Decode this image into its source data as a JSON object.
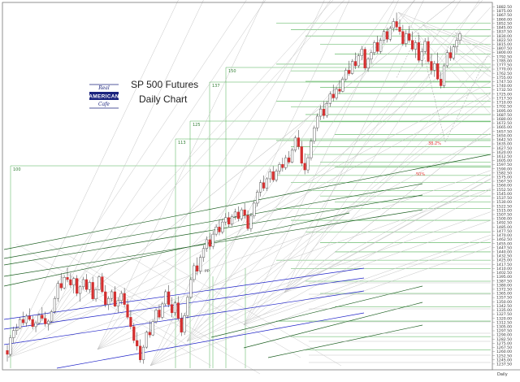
{
  "title": {
    "line1": "SP 500 Futures",
    "line2": "Daily Chart"
  },
  "logo": {
    "top": "Real",
    "main": "AMERICAN",
    "bottom": "Cafe"
  },
  "footer": "Daily",
  "colors": {
    "up_candle": "#ffffff",
    "down_candle": "#d32f2f",
    "green_line": "#4caf50",
    "dark_green_line": "#1b5e20",
    "blue_line": "#1e22c8",
    "gray_line": "#bdbdbd",
    "fib_label": "#e53935"
  },
  "chart_data": {
    "type": "candlestick",
    "ylim": [
      1230.0,
      1887.5
    ],
    "y_tick_step": 7.5,
    "y_tick_start": 1237.5,
    "y_tick_end": 1885.0,
    "box_labels": [
      "100",
      "113",
      "125",
      "137",
      "150"
    ],
    "annotations": [
      {
        "text": "38.2%",
        "price": 1555
      },
      {
        "text": "50%",
        "price": 1520
      },
      {
        "text": "pp",
        "price": 1412
      }
    ],
    "horizontal_levels": [
      1853,
      1841,
      1830,
      1815,
      1797,
      1779,
      1767,
      1748,
      1737,
      1726,
      1712,
      1702,
      1688,
      1675,
      1652,
      1641,
      1630,
      1616,
      1602,
      1593,
      1578,
      1565,
      1551,
      1541,
      1530,
      1518,
      1497,
      1476,
      1457,
      1440,
      1425,
      1410,
      1387,
      1365,
      1341,
      1315,
      1287,
      1263
    ],
    "candles": [
      {
        "o": 1262,
        "h": 1272,
        "l": 1242,
        "c": 1255
      },
      {
        "o": 1255,
        "h": 1290,
        "l": 1252,
        "c": 1285
      },
      {
        "o": 1285,
        "h": 1305,
        "l": 1275,
        "c": 1298
      },
      {
        "o": 1298,
        "h": 1310,
        "l": 1290,
        "c": 1302
      },
      {
        "o": 1302,
        "h": 1322,
        "l": 1300,
        "c": 1318
      },
      {
        "o": 1318,
        "h": 1332,
        "l": 1308,
        "c": 1312
      },
      {
        "o": 1312,
        "h": 1328,
        "l": 1305,
        "c": 1324
      },
      {
        "o": 1324,
        "h": 1338,
        "l": 1315,
        "c": 1318
      },
      {
        "o": 1318,
        "h": 1325,
        "l": 1300,
        "c": 1305
      },
      {
        "o": 1305,
        "h": 1316,
        "l": 1295,
        "c": 1312
      },
      {
        "o": 1312,
        "h": 1330,
        "l": 1308,
        "c": 1326
      },
      {
        "o": 1326,
        "h": 1340,
        "l": 1316,
        "c": 1320
      },
      {
        "o": 1320,
        "h": 1332,
        "l": 1305,
        "c": 1310
      },
      {
        "o": 1310,
        "h": 1318,
        "l": 1298,
        "c": 1315
      },
      {
        "o": 1315,
        "h": 1335,
        "l": 1312,
        "c": 1332
      },
      {
        "o": 1332,
        "h": 1360,
        "l": 1328,
        "c": 1356
      },
      {
        "o": 1356,
        "h": 1388,
        "l": 1350,
        "c": 1383
      },
      {
        "o": 1383,
        "h": 1402,
        "l": 1370,
        "c": 1375
      },
      {
        "o": 1375,
        "h": 1398,
        "l": 1372,
        "c": 1394
      },
      {
        "o": 1394,
        "h": 1412,
        "l": 1385,
        "c": 1390
      },
      {
        "o": 1390,
        "h": 1402,
        "l": 1375,
        "c": 1380
      },
      {
        "o": 1380,
        "h": 1395,
        "l": 1365,
        "c": 1392
      },
      {
        "o": 1392,
        "h": 1398,
        "l": 1360,
        "c": 1365
      },
      {
        "o": 1365,
        "h": 1380,
        "l": 1350,
        "c": 1377
      },
      {
        "o": 1377,
        "h": 1395,
        "l": 1372,
        "c": 1390
      },
      {
        "o": 1390,
        "h": 1400,
        "l": 1368,
        "c": 1372
      },
      {
        "o": 1372,
        "h": 1388,
        "l": 1366,
        "c": 1385
      },
      {
        "o": 1385,
        "h": 1395,
        "l": 1352,
        "c": 1355
      },
      {
        "o": 1355,
        "h": 1375,
        "l": 1350,
        "c": 1372
      },
      {
        "o": 1372,
        "h": 1398,
        "l": 1370,
        "c": 1395
      },
      {
        "o": 1395,
        "h": 1402,
        "l": 1365,
        "c": 1368
      },
      {
        "o": 1368,
        "h": 1380,
        "l": 1340,
        "c": 1345
      },
      {
        "o": 1345,
        "h": 1360,
        "l": 1335,
        "c": 1356
      },
      {
        "o": 1356,
        "h": 1372,
        "l": 1350,
        "c": 1368
      },
      {
        "o": 1368,
        "h": 1378,
        "l": 1340,
        "c": 1342
      },
      {
        "o": 1342,
        "h": 1358,
        "l": 1330,
        "c": 1352
      },
      {
        "o": 1352,
        "h": 1370,
        "l": 1345,
        "c": 1365
      },
      {
        "o": 1365,
        "h": 1375,
        "l": 1340,
        "c": 1345
      },
      {
        "o": 1345,
        "h": 1355,
        "l": 1318,
        "c": 1322
      },
      {
        "o": 1322,
        "h": 1335,
        "l": 1300,
        "c": 1305
      },
      {
        "o": 1305,
        "h": 1312,
        "l": 1275,
        "c": 1280
      },
      {
        "o": 1280,
        "h": 1295,
        "l": 1262,
        "c": 1270
      },
      {
        "o": 1270,
        "h": 1282,
        "l": 1240,
        "c": 1245
      },
      {
        "o": 1245,
        "h": 1272,
        "l": 1238,
        "c": 1268
      },
      {
        "o": 1268,
        "h": 1298,
        "l": 1265,
        "c": 1295
      },
      {
        "o": 1295,
        "h": 1315,
        "l": 1285,
        "c": 1290
      },
      {
        "o": 1290,
        "h": 1318,
        "l": 1288,
        "c": 1314
      },
      {
        "o": 1314,
        "h": 1338,
        "l": 1310,
        "c": 1335
      },
      {
        "o": 1335,
        "h": 1345,
        "l": 1318,
        "c": 1322
      },
      {
        "o": 1322,
        "h": 1350,
        "l": 1318,
        "c": 1346
      },
      {
        "o": 1346,
        "h": 1372,
        "l": 1342,
        "c": 1368
      },
      {
        "o": 1368,
        "h": 1380,
        "l": 1340,
        "c": 1345
      },
      {
        "o": 1345,
        "h": 1358,
        "l": 1322,
        "c": 1330
      },
      {
        "o": 1330,
        "h": 1352,
        "l": 1325,
        "c": 1348
      },
      {
        "o": 1348,
        "h": 1360,
        "l": 1316,
        "c": 1320
      },
      {
        "o": 1320,
        "h": 1330,
        "l": 1288,
        "c": 1295
      },
      {
        "o": 1295,
        "h": 1330,
        "l": 1290,
        "c": 1325
      },
      {
        "o": 1325,
        "h": 1362,
        "l": 1320,
        "c": 1358
      },
      {
        "o": 1358,
        "h": 1395,
        "l": 1355,
        "c": 1390
      },
      {
        "o": 1390,
        "h": 1420,
        "l": 1385,
        "c": 1415
      },
      {
        "o": 1415,
        "h": 1430,
        "l": 1398,
        "c": 1405
      },
      {
        "o": 1405,
        "h": 1435,
        "l": 1400,
        "c": 1430
      },
      {
        "o": 1430,
        "h": 1452,
        "l": 1422,
        "c": 1446
      },
      {
        "o": 1446,
        "h": 1468,
        "l": 1440,
        "c": 1462
      },
      {
        "o": 1462,
        "h": 1474,
        "l": 1444,
        "c": 1450
      },
      {
        "o": 1450,
        "h": 1478,
        "l": 1445,
        "c": 1472
      },
      {
        "o": 1472,
        "h": 1490,
        "l": 1468,
        "c": 1485
      },
      {
        "o": 1485,
        "h": 1498,
        "l": 1470,
        "c": 1476
      },
      {
        "o": 1476,
        "h": 1500,
        "l": 1472,
        "c": 1494
      },
      {
        "o": 1494,
        "h": 1510,
        "l": 1488,
        "c": 1502
      },
      {
        "o": 1502,
        "h": 1512,
        "l": 1485,
        "c": 1490
      },
      {
        "o": 1490,
        "h": 1508,
        "l": 1486,
        "c": 1504
      },
      {
        "o": 1504,
        "h": 1518,
        "l": 1498,
        "c": 1512
      },
      {
        "o": 1512,
        "h": 1522,
        "l": 1495,
        "c": 1500
      },
      {
        "o": 1500,
        "h": 1520,
        "l": 1496,
        "c": 1516
      },
      {
        "o": 1516,
        "h": 1528,
        "l": 1500,
        "c": 1506
      },
      {
        "o": 1506,
        "h": 1515,
        "l": 1478,
        "c": 1482
      },
      {
        "o": 1482,
        "h": 1510,
        "l": 1476,
        "c": 1505
      },
      {
        "o": 1505,
        "h": 1532,
        "l": 1500,
        "c": 1528
      },
      {
        "o": 1528,
        "h": 1552,
        "l": 1522,
        "c": 1548
      },
      {
        "o": 1548,
        "h": 1570,
        "l": 1540,
        "c": 1565
      },
      {
        "o": 1565,
        "h": 1578,
        "l": 1550,
        "c": 1555
      },
      {
        "o": 1555,
        "h": 1575,
        "l": 1550,
        "c": 1572
      },
      {
        "o": 1572,
        "h": 1590,
        "l": 1565,
        "c": 1585
      },
      {
        "o": 1585,
        "h": 1595,
        "l": 1566,
        "c": 1570
      },
      {
        "o": 1570,
        "h": 1590,
        "l": 1566,
        "c": 1586
      },
      {
        "o": 1586,
        "h": 1602,
        "l": 1580,
        "c": 1598
      },
      {
        "o": 1598,
        "h": 1610,
        "l": 1585,
        "c": 1592
      },
      {
        "o": 1592,
        "h": 1615,
        "l": 1588,
        "c": 1610
      },
      {
        "o": 1610,
        "h": 1622,
        "l": 1598,
        "c": 1602
      },
      {
        "o": 1602,
        "h": 1628,
        "l": 1600,
        "c": 1624
      },
      {
        "o": 1624,
        "h": 1650,
        "l": 1620,
        "c": 1646
      },
      {
        "o": 1646,
        "h": 1660,
        "l": 1625,
        "c": 1630
      },
      {
        "o": 1630,
        "h": 1640,
        "l": 1595,
        "c": 1600
      },
      {
        "o": 1600,
        "h": 1618,
        "l": 1580,
        "c": 1588
      },
      {
        "o": 1588,
        "h": 1615,
        "l": 1582,
        "c": 1610
      },
      {
        "o": 1610,
        "h": 1645,
        "l": 1605,
        "c": 1640
      },
      {
        "o": 1640,
        "h": 1668,
        "l": 1635,
        "c": 1664
      },
      {
        "o": 1664,
        "h": 1690,
        "l": 1658,
        "c": 1685
      },
      {
        "o": 1685,
        "h": 1705,
        "l": 1678,
        "c": 1698
      },
      {
        "o": 1698,
        "h": 1712,
        "l": 1680,
        "c": 1686
      },
      {
        "o": 1686,
        "h": 1712,
        "l": 1682,
        "c": 1708
      },
      {
        "o": 1708,
        "h": 1730,
        "l": 1702,
        "c": 1725
      },
      {
        "o": 1725,
        "h": 1742,
        "l": 1712,
        "c": 1718
      },
      {
        "o": 1718,
        "h": 1738,
        "l": 1714,
        "c": 1734
      },
      {
        "o": 1734,
        "h": 1750,
        "l": 1725,
        "c": 1730
      },
      {
        "o": 1730,
        "h": 1756,
        "l": 1728,
        "c": 1752
      },
      {
        "o": 1752,
        "h": 1772,
        "l": 1748,
        "c": 1768
      },
      {
        "o": 1768,
        "h": 1785,
        "l": 1758,
        "c": 1762
      },
      {
        "o": 1762,
        "h": 1788,
        "l": 1760,
        "c": 1784
      },
      {
        "o": 1784,
        "h": 1800,
        "l": 1770,
        "c": 1776
      },
      {
        "o": 1776,
        "h": 1798,
        "l": 1772,
        "c": 1794
      },
      {
        "o": 1794,
        "h": 1812,
        "l": 1786,
        "c": 1806
      },
      {
        "o": 1806,
        "h": 1810,
        "l": 1768,
        "c": 1772
      },
      {
        "o": 1772,
        "h": 1792,
        "l": 1765,
        "c": 1788
      },
      {
        "o": 1788,
        "h": 1805,
        "l": 1780,
        "c": 1800
      },
      {
        "o": 1800,
        "h": 1822,
        "l": 1795,
        "c": 1818
      },
      {
        "o": 1818,
        "h": 1830,
        "l": 1798,
        "c": 1802
      },
      {
        "o": 1802,
        "h": 1826,
        "l": 1798,
        "c": 1822
      },
      {
        "o": 1822,
        "h": 1842,
        "l": 1816,
        "c": 1838
      },
      {
        "o": 1838,
        "h": 1845,
        "l": 1818,
        "c": 1824
      },
      {
        "o": 1824,
        "h": 1848,
        "l": 1820,
        "c": 1844
      },
      {
        "o": 1844,
        "h": 1862,
        "l": 1838,
        "c": 1856
      },
      {
        "o": 1856,
        "h": 1872,
        "l": 1840,
        "c": 1846
      },
      {
        "o": 1846,
        "h": 1860,
        "l": 1832,
        "c": 1838
      },
      {
        "o": 1838,
        "h": 1850,
        "l": 1812,
        "c": 1816
      },
      {
        "o": 1816,
        "h": 1840,
        "l": 1810,
        "c": 1834
      },
      {
        "o": 1834,
        "h": 1848,
        "l": 1818,
        "c": 1822
      },
      {
        "o": 1822,
        "h": 1838,
        "l": 1802,
        "c": 1806
      },
      {
        "o": 1806,
        "h": 1822,
        "l": 1790,
        "c": 1818
      },
      {
        "o": 1818,
        "h": 1832,
        "l": 1782,
        "c": 1786
      },
      {
        "o": 1786,
        "h": 1808,
        "l": 1775,
        "c": 1802
      },
      {
        "o": 1802,
        "h": 1826,
        "l": 1798,
        "c": 1820
      },
      {
        "o": 1820,
        "h": 1828,
        "l": 1780,
        "c": 1784
      },
      {
        "o": 1784,
        "h": 1798,
        "l": 1760,
        "c": 1768
      },
      {
        "o": 1768,
        "h": 1785,
        "l": 1756,
        "c": 1780
      },
      {
        "o": 1780,
        "h": 1800,
        "l": 1750,
        "c": 1752
      },
      {
        "o": 1752,
        "h": 1765,
        "l": 1735,
        "c": 1740
      },
      {
        "o": 1740,
        "h": 1780,
        "l": 1736,
        "c": 1776
      },
      {
        "o": 1776,
        "h": 1805,
        "l": 1772,
        "c": 1800
      },
      {
        "o": 1800,
        "h": 1812,
        "l": 1785,
        "c": 1790
      },
      {
        "o": 1790,
        "h": 1815,
        "l": 1786,
        "c": 1810
      },
      {
        "o": 1810,
        "h": 1828,
        "l": 1800,
        "c": 1822
      },
      {
        "o": 1822,
        "h": 1838,
        "l": 1815,
        "c": 1834
      }
    ]
  }
}
